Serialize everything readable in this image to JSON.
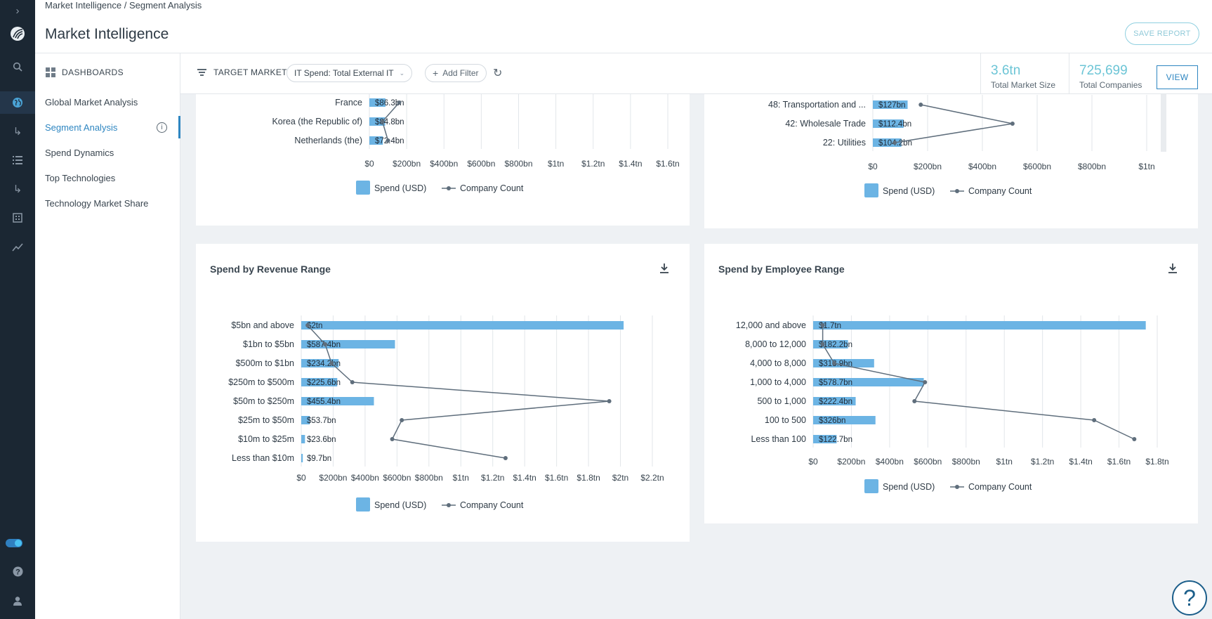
{
  "nav": {
    "breadcrumb": "Market Intelligence  /  Segment Analysis",
    "title": "Market Intelligence",
    "save_report": "SAVE REPORT"
  },
  "sidebar": {
    "heading": "DASHBOARDS",
    "items": [
      {
        "label": "Global Market Analysis"
      },
      {
        "label": "Segment Analysis"
      },
      {
        "label": "Spend Dynamics"
      },
      {
        "label": "Top Technologies"
      },
      {
        "label": "Technology Market Share"
      }
    ]
  },
  "filters": {
    "label": "TARGET MARKET",
    "chip": "IT Spend: Total External IT",
    "add": "Add Filter"
  },
  "stats": {
    "market_size_value": "3.6tn",
    "market_size_label": "Total Market Size",
    "companies_value": "725,699",
    "companies_label": "Total Companies",
    "view": "VIEW"
  },
  "legend": {
    "spend": "Spend (USD)",
    "count": "Company Count"
  },
  "colors": {
    "bar": "#6cb4e4",
    "line": "#5f6e7c",
    "accent": "#2e86c1"
  },
  "chart_data": [
    {
      "type": "bar",
      "title": "",
      "categories": [
        "France",
        "Korea (the Republic of)",
        "Netherlands (the)"
      ],
      "labels": [
        "$86.3bn",
        "$84.8bn",
        "$72.4bn"
      ],
      "series": [
        {
          "name": "Spend (USD)",
          "values": [
            86.3,
            84.8,
            72.4
          ]
        },
        {
          "name": "Company Count",
          "values": [
            160,
            70,
            100
          ]
        }
      ],
      "xticks": [
        "$0",
        "$200bn",
        "$400bn",
        "$600bn",
        "$800bn",
        "$1tn",
        "$1.2tn",
        "$1.4tn",
        "$1.6tn"
      ],
      "xlim": [
        0,
        1600
      ],
      "note": "partially scrolled out of view"
    },
    {
      "type": "bar",
      "title": "",
      "categories": [
        "48: Transportation and ...",
        "42: Wholesale Trade",
        "22: Utilities"
      ],
      "labels": [
        "$127bn",
        "$112.4bn",
        "$104.2bn"
      ],
      "series": [
        {
          "name": "Spend (USD)",
          "values": [
            127,
            112.4,
            104.2
          ]
        },
        {
          "name": "Company Count",
          "values": [
            175,
            510,
            80
          ]
        }
      ],
      "xticks": [
        "$0",
        "$200bn",
        "$400bn",
        "$600bn",
        "$800bn",
        "$1tn"
      ],
      "xlim": [
        0,
        1000
      ],
      "note": "partially scrolled out of view"
    },
    {
      "type": "bar",
      "title": "Spend by Revenue Range",
      "categories": [
        "$5bn and above",
        "$1bn to $5bn",
        "$500m to $1bn",
        "$250m to $500m",
        "$50m to $250m",
        "$25m to $50m",
        "$10m to $25m",
        "Less than $10m"
      ],
      "labels": [
        "$2tn",
        "$587.4bn",
        "$234.2bn",
        "$225.6bn",
        "$455.4bn",
        "$53.7bn",
        "$23.6bn",
        "$9.7bn"
      ],
      "series": [
        {
          "name": "Spend (USD)",
          "values": [
            2020,
            587.4,
            234.2,
            225.6,
            455.4,
            53.7,
            23.6,
            9.7
          ]
        },
        {
          "name": "Company Count",
          "values": [
            40,
            150,
            190,
            320,
            1930,
            630,
            570,
            1280
          ]
        }
      ],
      "xticks": [
        "$0",
        "$200bn",
        "$400bn",
        "$600bn",
        "$800bn",
        "$1tn",
        "$1.2tn",
        "$1.4tn",
        "$1.6tn",
        "$1.8tn",
        "$2tn",
        "$2.2tn"
      ],
      "xlim": [
        0,
        2200
      ]
    },
    {
      "type": "bar",
      "title": "Spend by Employee Range",
      "categories": [
        "12,000 and above",
        "8,000 to 12,000",
        "4,000 to 8,000",
        "1,000 to 4,000",
        "500 to 1,000",
        "100 to 500",
        "Less than 100"
      ],
      "labels": [
        "$1.7tn",
        "$182.2bn",
        "$318.9bn",
        "$578.7bn",
        "$222.4bn",
        "$326bn",
        "$122.7bn"
      ],
      "series": [
        {
          "name": "Spend (USD)",
          "values": [
            1740,
            182.2,
            318.9,
            578.7,
            222.4,
            326,
            122.7
          ]
        },
        {
          "name": "Company Count",
          "values": [
            50,
            50,
            110,
            585,
            530,
            1470,
            1680
          ]
        }
      ],
      "xticks": [
        "$0",
        "$200bn",
        "$400bn",
        "$600bn",
        "$800bn",
        "$1tn",
        "$1.2tn",
        "$1.4tn",
        "$1.6tn",
        "$1.8tn"
      ],
      "xlim": [
        0,
        1800
      ]
    }
  ]
}
